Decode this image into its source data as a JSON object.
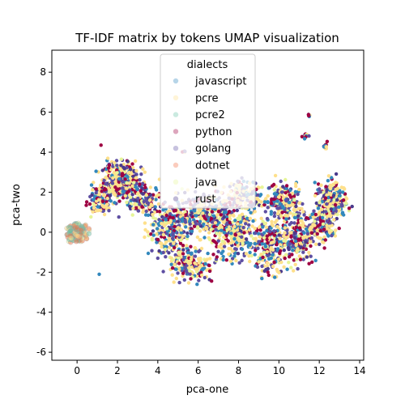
{
  "chart_data": {
    "type": "scatter",
    "title": "TF-IDF matrix by tokens UMAP visualization",
    "xlabel": "pca-one",
    "ylabel": "pca-two",
    "xlim": [
      -1.25,
      14.2
    ],
    "ylim": [
      -6.4,
      9.1
    ],
    "xticks": [
      0,
      2,
      4,
      6,
      8,
      10,
      12,
      14
    ],
    "yticks": [
      -6,
      -4,
      -2,
      0,
      2,
      4,
      6,
      8
    ],
    "grid": false,
    "legend": {
      "title": "dialects",
      "placement": "top-center"
    },
    "series": [
      {
        "name": "javascript",
        "color": "#3288bd"
      },
      {
        "name": "pcre",
        "color": "#fee08b"
      },
      {
        "name": "pcre2",
        "color": "#66c2a5"
      },
      {
        "name": "python",
        "color": "#9e0142"
      },
      {
        "name": "golang",
        "color": "#5e4fa2"
      },
      {
        "name": "dotnet",
        "color": "#f46d43"
      },
      {
        "name": "java",
        "color": "#e6f598"
      },
      {
        "name": "rust",
        "color": "#4a3a8c"
      }
    ]
  }
}
